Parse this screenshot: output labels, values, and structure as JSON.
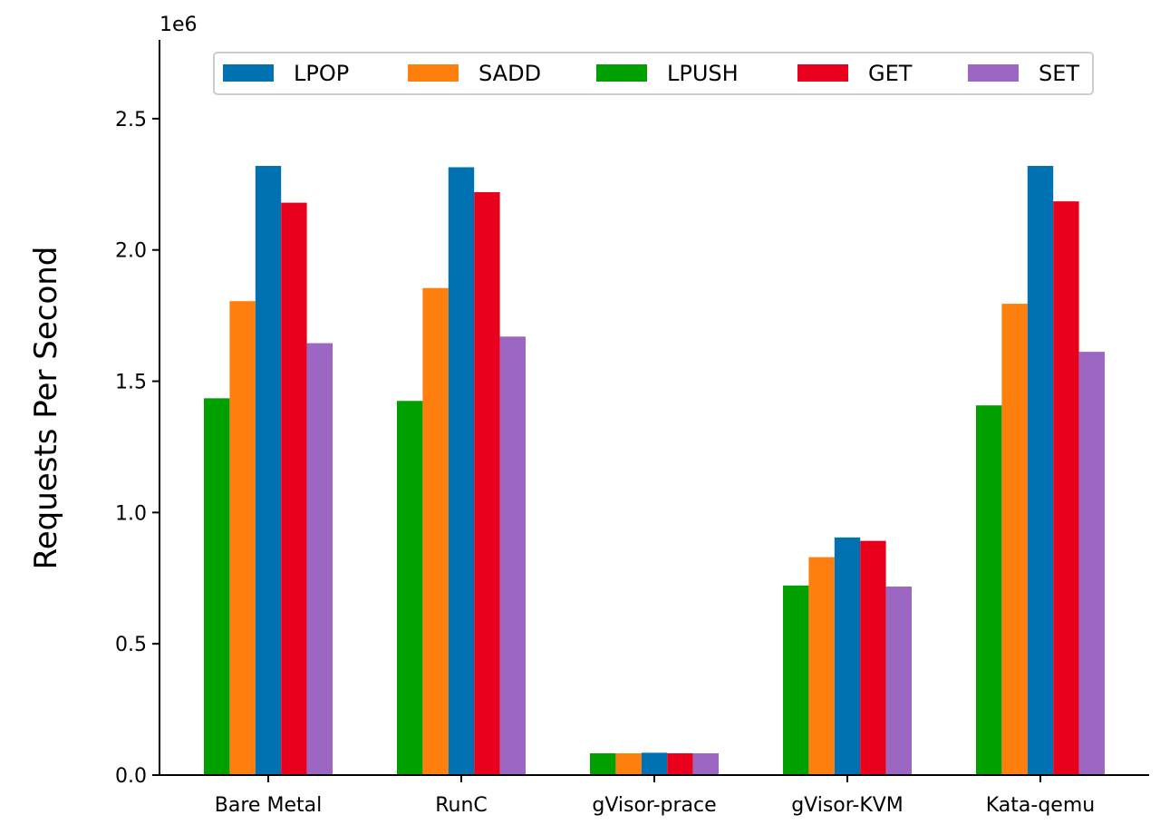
{
  "chart_data": {
    "type": "bar",
    "title": "",
    "xlabel": "",
    "ylabel": "Requests Per Second",
    "y_scale_label": "1e6",
    "ylim": [
      0,
      2.8
    ],
    "y_ticks": [
      0.0,
      0.5,
      1.0,
      1.5,
      2.0,
      2.5
    ],
    "y_tick_labels": [
      "0.0",
      "0.5",
      "1.0",
      "1.5",
      "2.0",
      "2.5"
    ],
    "grid": false,
    "legend_position": "top",
    "categories": [
      "Bare Metal",
      "RunC",
      "gVisor-prace",
      "gVisor-KVM",
      "Kata-qemu"
    ],
    "bar_order": [
      "LPUSH",
      "SADD",
      "LPOP",
      "GET",
      "SET"
    ],
    "series": [
      {
        "name": "LPOP",
        "color": "#0072b2",
        "values": [
          2.32,
          2.315,
          0.085,
          0.905,
          2.32
        ]
      },
      {
        "name": "SADD",
        "color": "#ff7f0e",
        "values": [
          1.805,
          1.855,
          0.083,
          0.83,
          1.795
        ]
      },
      {
        "name": "LPUSH",
        "color": "#00a000",
        "values": [
          1.435,
          1.425,
          0.083,
          0.722,
          1.408
        ]
      },
      {
        "name": "GET",
        "color": "#e8001c",
        "values": [
          2.18,
          2.22,
          0.083,
          0.892,
          2.185
        ]
      },
      {
        "name": "SET",
        "color": "#9b67c2",
        "values": [
          1.645,
          1.67,
          0.083,
          0.718,
          1.612
        ]
      }
    ]
  }
}
